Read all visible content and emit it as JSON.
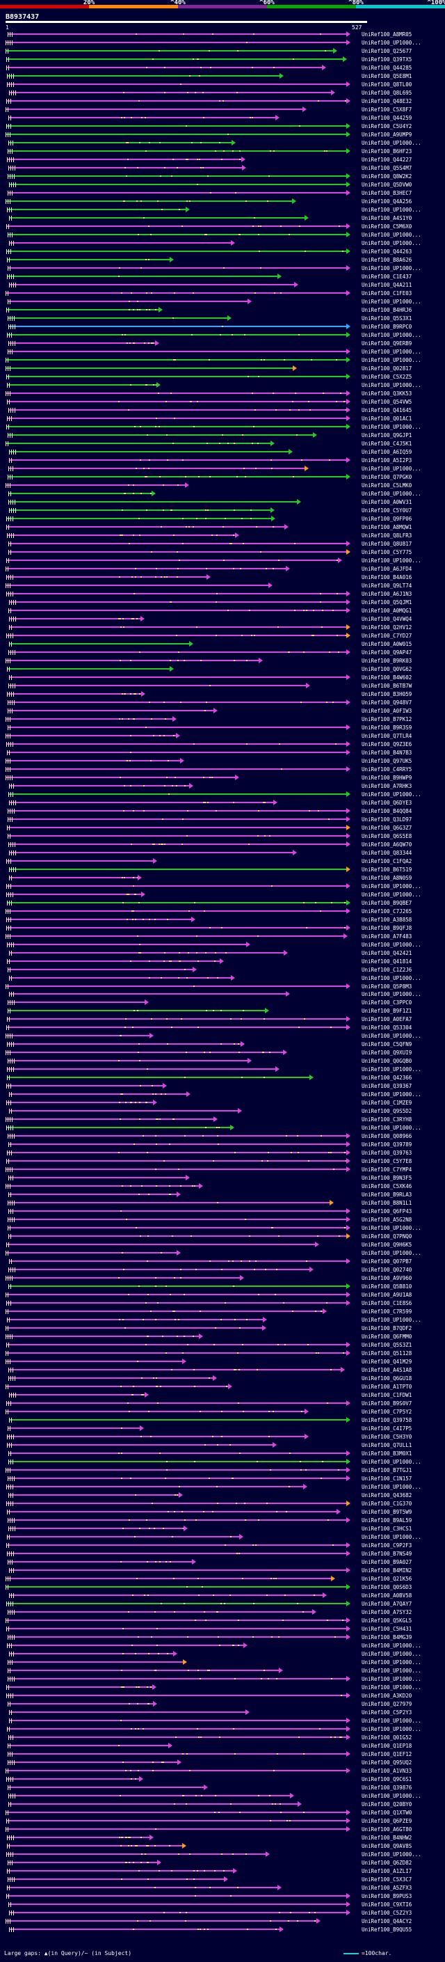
{
  "scale": {
    "ticks": [
      "20%",
      "^40%",
      "^60%",
      "^80%",
      "^100%"
    ],
    "segments": [
      {
        "color": "#dd0000"
      },
      {
        "color": "#ff8800"
      },
      {
        "color": "#882299"
      },
      {
        "color": "#00aa00"
      },
      {
        "color": "#00cccc"
      }
    ]
  },
  "query": {
    "id": "B8937437",
    "start": "1",
    "end": "527"
  },
  "colors": {
    "magenta": "#dd44dd",
    "green": "#22cc22",
    "orange": "#ff9922",
    "blue": "#33aaff",
    "white": "#ffffff",
    "gap": "#ffdd88"
  },
  "hits": [
    "UniRef100_A8MR05",
    "UniRef100_UP1000...",
    "UniRef100_Q25677",
    "UniRef100_Q39TX5",
    "UniRef100_Q44285",
    "UniRef100_Q5E8M1",
    "UniRef100_Q8TL00",
    "UniRef100_Q8L695",
    "UniRef100_Q48E32",
    "UniRef100_C5X8F7",
    "UniRef100_Q44259",
    "UniRef100_C5U4Y2",
    "UniRef100_A9UMP9",
    "UniRef100_UP1000...",
    "UniRef100_B6HF23",
    "UniRef100_Q44227",
    "UniRef100_Q5S4M7",
    "UniRef100_Q8W2K2",
    "UniRef100_Q5DVW0",
    "UniRef100_B3HEC7",
    "UniRef100_Q4A256",
    "UniRef100_UP1000...",
    "UniRef100_A4S1Y0",
    "UniRef100_C5M6X0",
    "UniRef100_UP1000...",
    "UniRef100_UP1000...",
    "UniRef100_Q44263",
    "UniRef100_B8A626",
    "UniRef100_UP1000...",
    "UniRef100_C1E437",
    "UniRef100_Q4A211",
    "UniRef100_C1FE03",
    "UniRef100_UP1000...",
    "UniRef100_B4HRJ6",
    "UniRef100_Q5S3X1",
    "UniRef100_B9RPC0",
    "UniRef100_UP1000...",
    "UniRef100_Q9ERB9",
    "UniRef100_UP1000...",
    "UniRef100_UP1000...",
    "UniRef100_Q02817",
    "UniRef100_C5X2Z5",
    "UniRef100_UP1000...",
    "UniRef100_Q3KK53",
    "UniRef100_Q54VW5",
    "UniRef100_Q41645",
    "UniRef100_Q01AC1",
    "UniRef100_UP1000...",
    "UniRef100_Q9GJP1",
    "UniRef100_C4J5K1",
    "UniRef100_A6IQ59",
    "UniRef100_A5I2P3",
    "UniRef100_UP1000...",
    "UniRef100_Q7PGK0",
    "UniRef100_C5LMK0",
    "UniRef100_UP1000...",
    "UniRef100_A0WV31",
    "UniRef100_C5Y0U7",
    "UniRef100_Q9FP06",
    "UniRef100_A8MQW1",
    "UniRef100_Q8LFR3",
    "UniRef100_Q8U817",
    "UniRef100_C5Y775",
    "UniRef100_UP1000...",
    "UniRef100_A6JFD4",
    "UniRef100_B4A016",
    "UniRef100_Q9LT74",
    "UniRef100_A6J1N3",
    "UniRef100_Q5QJM1",
    "UniRef100_A0MQG1",
    "UniRef100_Q4VWQ4",
    "UniRef100_Q2HV12",
    "UniRef100_C7YD27",
    "UniRef100_A0W015",
    "UniRef100_Q9AP47",
    "UniRef100_B9RK03",
    "UniRef100_Q0VG62",
    "UniRef100_B4W602",
    "UniRef100_B6TB7W",
    "UniRef100_B3H059",
    "UniRef100_Q948V7",
    "UniRef100_A0FIW3",
    "UniRef100_B7PK12",
    "UniRef100_B9R3S9",
    "UniRef100_Q7TLR4",
    "UniRef100_Q9Z3E6",
    "UniRef100_B4N7B3",
    "UniRef100_Q97UK5",
    "UniRef100_C4RRY5",
    "UniRef100_B9HWP9",
    "UniRef100_A7RHK3",
    "UniRef100_UP1000...",
    "UniRef100_Q6DYE3",
    "UniRef100_B4QQ84",
    "UniRef100_Q3LD97",
    "UniRef100_Q6G3Z7",
    "UniRef100_Q6S5E8",
    "UniRef100_A6QW70",
    "UniRef100_Q83344",
    "UniRef100_C1FQA2",
    "UniRef100_B6T519",
    "UniRef100_A8N0S9",
    "UniRef100_UP1000...",
    "UniRef100_UP1000...",
    "UniRef100_B9QBE7",
    "UniRef100_C7J265",
    "UniRef100_A3B858",
    "UniRef100_B9QFJ8",
    "UniRef100_A7F483",
    "UniRef100_UP1000...",
    "UniRef100_Q42421",
    "UniRef100_Q41814",
    "UniRef100_C1Z2J6",
    "UniRef100_UP1000...",
    "UniRef100_Q5P8M3",
    "UniRef100_UP1000...",
    "UniRef100_C3PPC0",
    "UniRef100_B9F1Z1",
    "UniRef100_A0EFA7",
    "UniRef100_Q53304",
    "UniRef100_UP1000...",
    "UniRef100_C5QFN9",
    "UniRef100_Q9XUI9",
    "UniRef100_Q0GQB0",
    "UniRef100_UP1000...",
    "UniRef100_Q42366",
    "UniRef100_Q39367",
    "UniRef100_UP1000...",
    "UniRef100_C1MZE9",
    "UniRef100_Q9S5D2",
    "UniRef100_C3RYH8",
    "UniRef100_UP1000...",
    "UniRef100_Q08966",
    "UniRef100_Q39789",
    "UniRef100_Q39763",
    "UniRef100_C5Y7E8",
    "UniRef100_C7YMP4",
    "UniRef100_B9N3F5",
    "UniRef100_C5XK46",
    "UniRef100_B9RLA3",
    "UniRef100_B8N1L1",
    "UniRef100_Q6FP43",
    "UniRef100_A5G2N8",
    "UniRef100_UP1000...",
    "UniRef100_Q7PNQ0",
    "UniRef100_Q9H6K5",
    "UniRef100_UP1000...",
    "UniRef100_Q07PB7",
    "UniRef100_Q02740",
    "UniRef100_A9V960",
    "UniRef100_Q5B810",
    "UniRef100_A9U1A8",
    "UniRef100_C1E8S6",
    "UniRef100_C7R599",
    "UniRef100_UP1000...",
    "UniRef100_B7QDF2",
    "UniRef100_Q6FMM0",
    "UniRef100_Q5S3Z1",
    "UniRef100_Q51128",
    "UniRef100_Q41M29",
    "UniRef100_A4S1A8",
    "UniRef100_Q6GU18",
    "UniRef100_A1TPT0",
    "UniRef100_C1FDW1",
    "UniRef100_B9S0V7",
    "UniRef100_C7P5Y2",
    "UniRef100_Q39758",
    "UniRef100_C4I7P5",
    "UniRef100_C5H3Y0",
    "UniRef100_Q7ULL1",
    "UniRef100_B3M0X1",
    "UniRef100_UP1000...",
    "UniRef100_B7TGJ1",
    "UniRef100_C1N157",
    "UniRef100_UP1000...",
    "UniRef100_Q43682",
    "UniRef100_C1G370",
    "UniRef100_B9T5W9",
    "UniRef100_B9AL59",
    "UniRef100_C3HCS1",
    "UniRef100_UP1000...",
    "UniRef100_C9P2F3",
    "UniRef100_B7NS49",
    "UniRef100_B9A027",
    "UniRef100_B4MIN2",
    "UniRef100_Q21K56",
    "UniRef100_Q0S6D3",
    "UniRef100_A0BV58",
    "UniRef100_A7QAY7",
    "UniRef100_A7SY32",
    "UniRef100_Q5KGL5",
    "UniRef100_C5H431",
    "UniRef100_B4MG39",
    "UniRef100_UP1000...",
    "UniRef100_UP1000...",
    "UniRef100_UP1000...",
    "UniRef100_UP1000...",
    "UniRef100_UP1000...",
    "UniRef100_UP1000...",
    "UniRef100_A3KD20",
    "UniRef100_Q27979",
    "UniRef100_C5P2Y3",
    "UniRef100_UP1000...",
    "UniRef100_UP1000...",
    "UniRef100_Q01G52",
    "UniRef100_Q1EP18",
    "UniRef100_Q1EF12",
    "UniRef100_Q95UQ2",
    "UniRef100_A1VN33",
    "UniRef100_Q9C6S1",
    "UniRef100_Q39876",
    "UniRef100_UP1000...",
    "UniRef100_Q20BY0",
    "UniRef100_Q1XTW0",
    "UniRef100_Q6PZE9",
    "UniRef100_A6GT80",
    "UniRef100_B4NHW2",
    "UniRef100_Q9AV8S",
    "UniRef100_UP1000...",
    "UniRef100_Q6ZD82",
    "UniRef100_A1ZLI7",
    "UniRef100_C5X3C7",
    "UniRef100_A5ZFX3",
    "UniRef100_B9PUS3",
    "UniRef100_C9XTI6",
    "UniRef100_C5Z2Y3",
    "UniRef100_Q4ACY2",
    "UniRef100_B9QU55"
  ],
  "legend": {
    "gaps_text": "Large gaps: ▲(in Query)/~ (in Subject)",
    "scale_text": "=100char."
  }
}
